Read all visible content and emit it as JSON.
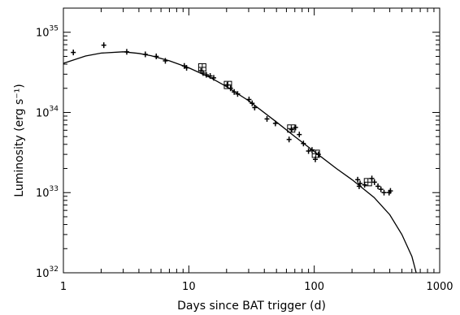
{
  "chart_data": {
    "type": "scatter",
    "title": "",
    "xlabel": "Days since BAT trigger (d)",
    "ylabel": "Luminosity (erg s⁻¹)",
    "xscale": "log",
    "yscale": "log",
    "xlim": [
      1,
      1000
    ],
    "ylim": [
      1e+32,
      2e+35
    ],
    "grid": false,
    "legend": "none",
    "x_ticks": [
      {
        "value": 1,
        "label": "1"
      },
      {
        "value": 10,
        "label": "10"
      },
      {
        "value": 100,
        "label": "100"
      },
      {
        "value": 1000,
        "label": "1000"
      }
    ],
    "y_ticks": [
      {
        "value": 1e+32,
        "base": "10",
        "exp": "32"
      },
      {
        "value": 1e+33,
        "base": "10",
        "exp": "33"
      },
      {
        "value": 1e+34,
        "base": "10",
        "exp": "34"
      },
      {
        "value": 1e+35,
        "base": "10",
        "exp": "35"
      }
    ],
    "series": [
      {
        "marker": "plus",
        "x": [
          1.2,
          2.1,
          3.2,
          4.5,
          5.5,
          6.5,
          9.2,
          9.6,
          12.5,
          13.0,
          13.8,
          14.8,
          15.8,
          20.2,
          21.5,
          23.0,
          24.5,
          30.2,
          32.0,
          33.5,
          42.0,
          49.0,
          63.0,
          66.0,
          71.0,
          76.0,
          82.0,
          90.0,
          96.0,
          102.0,
          108.0,
          222.0,
          228.0,
          232.0,
          252.0,
          288.0,
          302.0,
          322.0,
          340.0,
          360.0,
          395.0,
          405.0
        ],
        "y": [
          5.6e+34,
          6.9e+34,
          5.7e+34,
          5.3e+34,
          5e+34,
          4.4e+34,
          3.8e+34,
          3.6e+34,
          3.3e+34,
          3.1e+34,
          2.95e+34,
          2.85e+34,
          2.7e+34,
          2.2e+34,
          2e+34,
          1.8e+34,
          1.7e+34,
          1.45e+34,
          1.3e+34,
          1.15e+34,
          8.3e+33,
          7.3e+33,
          4.6e+33,
          6.1e+33,
          6.5e+33,
          5.3e+33,
          4.1e+33,
          3.3e+33,
          3.4e+33,
          2.6e+33,
          3e+33,
          1.45e+33,
          1.2e+33,
          1.3e+33,
          1.25e+33,
          1.5e+33,
          1.35e+33,
          1.2e+33,
          1.1e+33,
          1e+33,
          1e+33,
          1.05e+33
        ]
      },
      {
        "marker": "square-plus",
        "x": [
          12.8,
          20.5,
          65.5,
          103.0,
          268.0
        ],
        "y": [
          3.65e+34,
          2.2e+34,
          6.3e+33,
          3.05e+33,
          1.35e+33
        ]
      }
    ],
    "model_curve": {
      "style": "solid line",
      "x": [
        1,
        1.5,
        2,
        3,
        4,
        5,
        7,
        10,
        15,
        20,
        30,
        50,
        70,
        100,
        150,
        200,
        300,
        400,
        500,
        600,
        650
      ],
      "y": [
        4.1e+34,
        5.05e+34,
        5.5e+34,
        5.7e+34,
        5.45e+34,
        5.1e+34,
        4.4e+34,
        3.6e+34,
        2.7e+34,
        2.1e+34,
        1.4e+34,
        7.6e+33,
        5e+33,
        3.25e+33,
        2e+33,
        1.45e+33,
        8.7e+32,
        5.3e+32,
        3e+32,
        1.6e+32,
        1e+32
      ]
    }
  }
}
